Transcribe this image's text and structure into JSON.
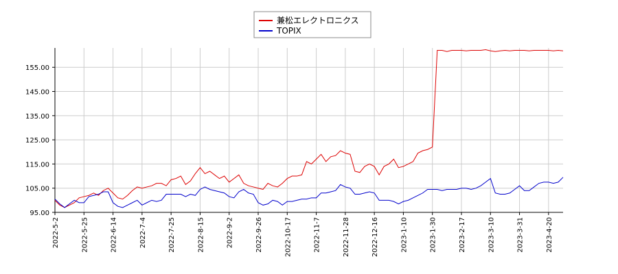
{
  "chart_data": {
    "type": "line",
    "categories": [
      "2022-5-2",
      null,
      null,
      null,
      null,
      null,
      "2022-5-25",
      null,
      null,
      null,
      null,
      null,
      "2022-6-14",
      null,
      null,
      null,
      null,
      null,
      "2022-7-4",
      null,
      null,
      null,
      null,
      null,
      "2022-7-25",
      null,
      null,
      null,
      null,
      null,
      "2022-8-15",
      null,
      null,
      null,
      null,
      null,
      "2022-9-2",
      null,
      null,
      null,
      null,
      null,
      "2022-9-26",
      null,
      null,
      null,
      null,
      null,
      "2022-10-17",
      null,
      null,
      null,
      null,
      null,
      "2022-11-7",
      null,
      null,
      null,
      null,
      null,
      "2022-11-28",
      null,
      null,
      null,
      null,
      null,
      "2022-12-16",
      null,
      null,
      null,
      null,
      null,
      "2023-1-10",
      null,
      null,
      null,
      null,
      null,
      "2023-1-30",
      null,
      null,
      null,
      null,
      null,
      "2023-2-17",
      null,
      null,
      null,
      null,
      null,
      "2023-3-10",
      null,
      null,
      null,
      null,
      null,
      "2023-3-31",
      null,
      null,
      null,
      null,
      null,
      "2023-4-20",
      null,
      null,
      null
    ],
    "series": [
      {
        "name": "兼松エレクトロニクス",
        "color": "#dd0000",
        "values": [
          100,
          98,
          97,
          98,
          99,
          101,
          101.5,
          102,
          103,
          102,
          104,
          105,
          103,
          101,
          100.5,
          102,
          104,
          105.5,
          105,
          105.5,
          106,
          107,
          107,
          106,
          108.5,
          109,
          110,
          106.5,
          108,
          111,
          113.5,
          111,
          112,
          110.5,
          109,
          110,
          107.5,
          109,
          110.5,
          107,
          106,
          105.5,
          105,
          104.5,
          107,
          106,
          105.5,
          107,
          109,
          110,
          110,
          110.5,
          116,
          115,
          117,
          119,
          116,
          118,
          118.5,
          120.5,
          119.5,
          119,
          112,
          111.5,
          114,
          115,
          114,
          110.5,
          114,
          115,
          117,
          113.5,
          114,
          115,
          116,
          119.5,
          120.5,
          121,
          122,
          162,
          162,
          161.5,
          162,
          162,
          162,
          161.8,
          162,
          162,
          162,
          162.3,
          161.8,
          161.5,
          161.8,
          162,
          161.8,
          162,
          162,
          162,
          161.8,
          162,
          162,
          162,
          162,
          161.8,
          162,
          161.8
        ]
      },
      {
        "name": "TOPIX",
        "color": "#0000cc",
        "values": [
          100.5,
          98.5,
          97,
          98.5,
          100,
          99,
          99,
          101.5,
          102,
          102.5,
          103.5,
          103.5,
          99,
          97.5,
          97,
          98,
          99,
          100,
          98,
          99,
          100,
          99.5,
          100,
          102.5,
          102.5,
          102.5,
          102.5,
          101.5,
          102.5,
          102,
          104.5,
          105.5,
          104.5,
          104,
          103.5,
          103,
          101.5,
          101,
          103.5,
          104.5,
          103,
          102.5,
          99,
          98,
          98.5,
          100,
          99.5,
          98,
          99.5,
          99.5,
          100,
          100.5,
          100.5,
          101,
          101,
          103,
          103,
          103.5,
          104,
          106.5,
          105.5,
          105,
          102.5,
          102.5,
          103,
          103.5,
          103,
          100,
          100,
          100,
          99.5,
          98.5,
          99.5,
          100,
          101,
          102,
          103,
          104.5,
          104.5,
          104.5,
          104,
          104.5,
          104.5,
          104.5,
          105,
          105,
          104.5,
          105,
          106,
          107.5,
          109,
          103,
          102.5,
          102.5,
          103,
          104.5,
          106,
          104,
          104,
          105.5,
          107,
          107.5,
          107.5,
          107,
          107.5,
          109.5
        ]
      }
    ],
    "ylim": [
      95,
      163
    ],
    "yticks": [
      {
        "value": 95,
        "label": "95.00"
      },
      {
        "value": 105,
        "label": "105.00"
      },
      {
        "value": 115,
        "label": "115.00"
      },
      {
        "value": 125,
        "label": "125.00"
      },
      {
        "value": 135,
        "label": "135.00"
      },
      {
        "value": 145,
        "label": "145.00"
      },
      {
        "value": 155,
        "label": "155.00"
      }
    ],
    "grid": true
  }
}
